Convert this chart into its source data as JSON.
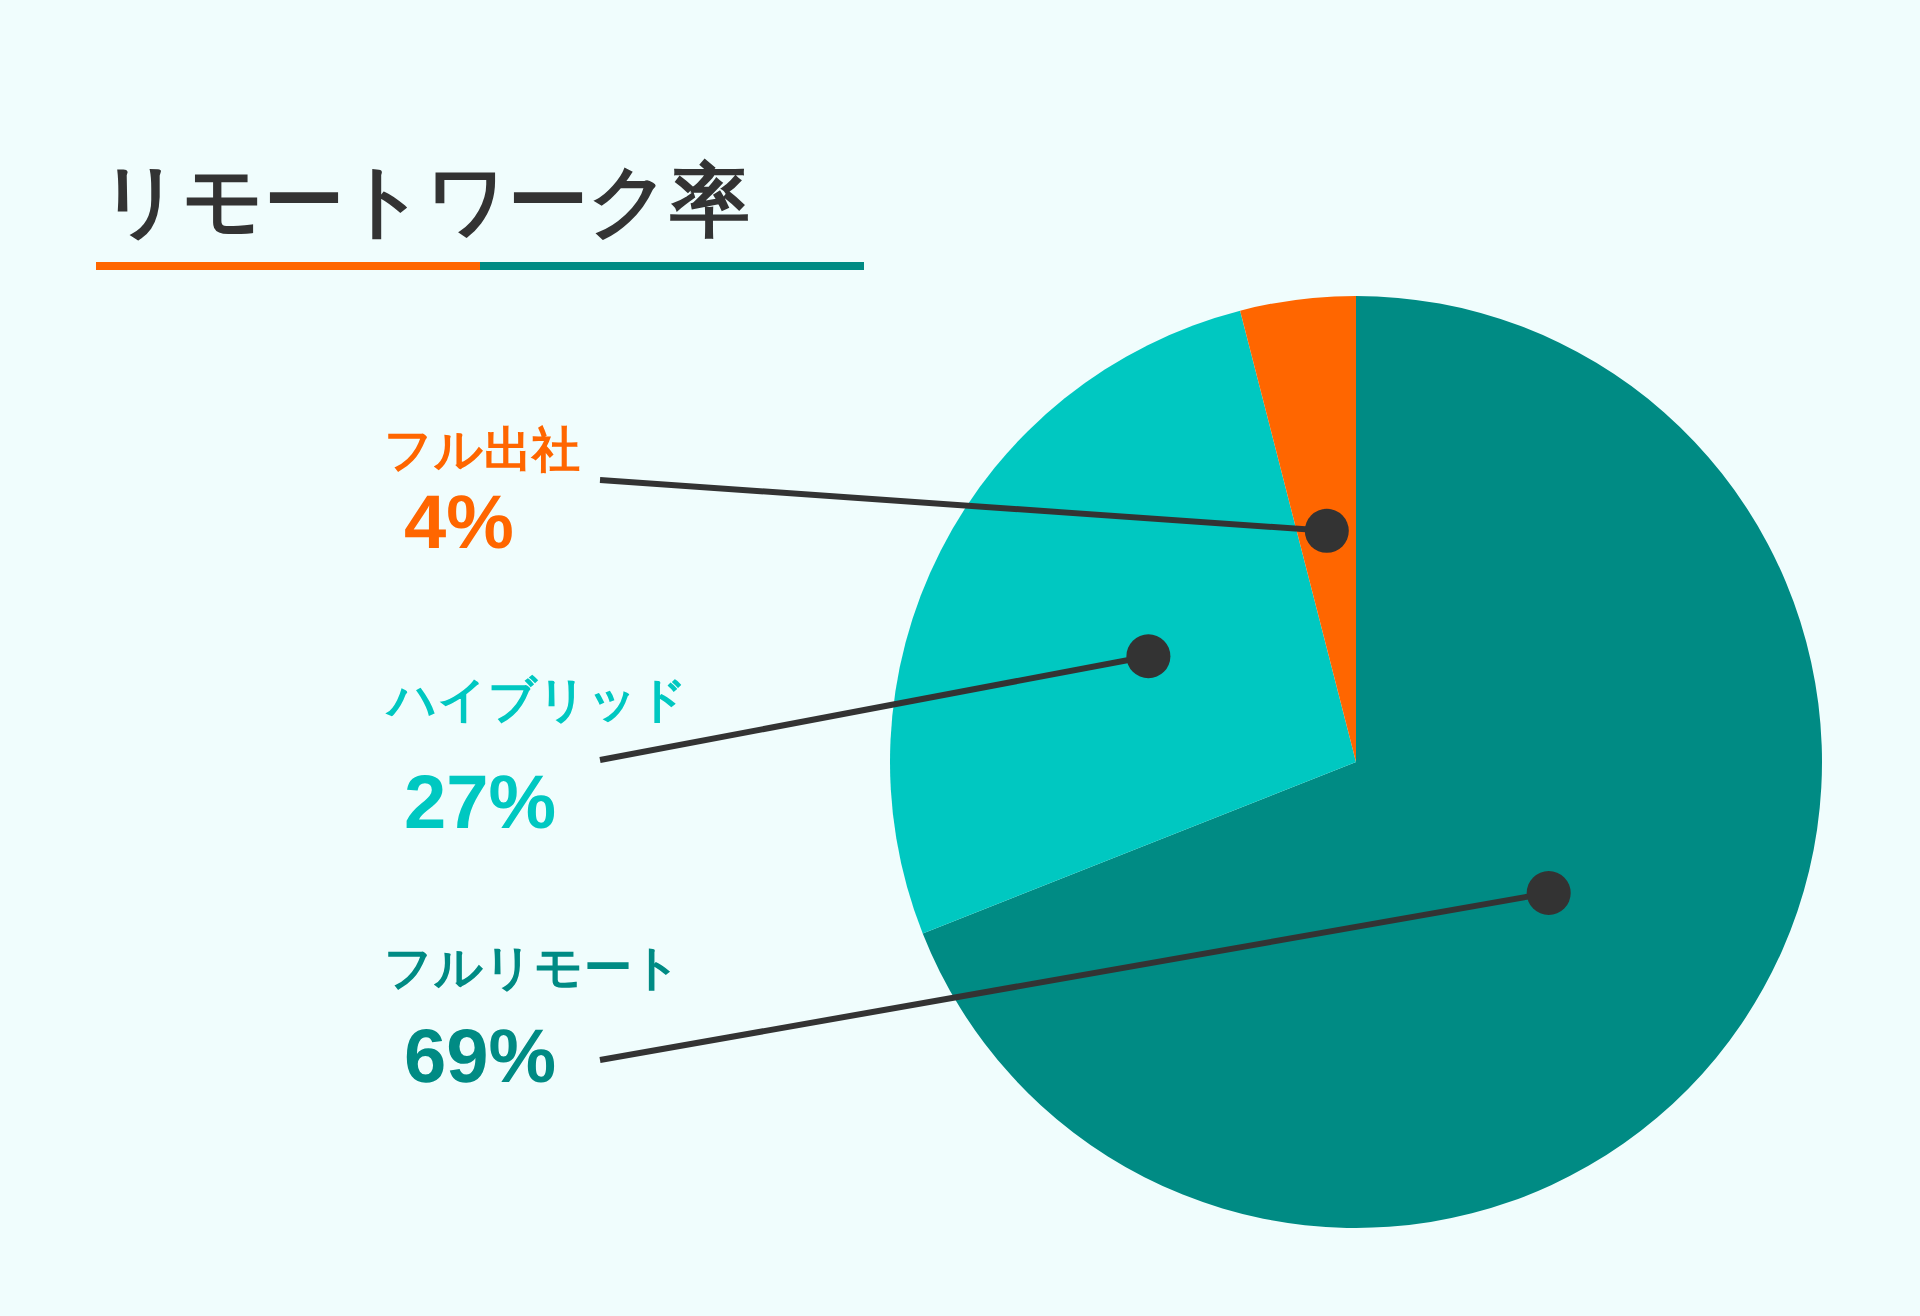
{
  "chart_data": {
    "type": "pie",
    "title": "リモートワーク率",
    "categories": [
      "フルリモート",
      "ハイブリッド",
      "フル出社"
    ],
    "values": [
      69,
      27,
      4
    ],
    "value_labels": [
      "69%",
      "27%",
      "4%"
    ],
    "colors": [
      "#008b84",
      "#00c8c1",
      "#ff6600"
    ],
    "legend": false
  }
}
